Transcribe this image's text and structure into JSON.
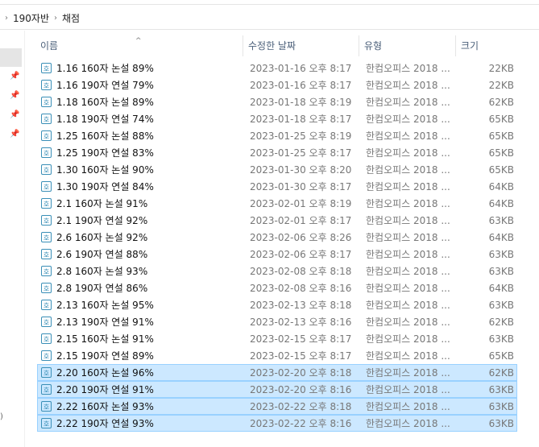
{
  "breadcrumb": [
    "190자반",
    "채점"
  ],
  "columns": {
    "name": "이름",
    "date": "수정한 날짜",
    "type": "유형",
    "size": "크기"
  },
  "colors": {
    "selection_bg": "#cce8ff",
    "selection_border": "#99d1ff",
    "file_icon": "#3a8fb7"
  },
  "icons": {
    "file": "hwp-file-icon",
    "pin": "pin-icon",
    "sort": "sort-ascending-icon"
  },
  "files": [
    {
      "name": "1.16 160자 논설 89%",
      "date": "2023-01-16 오후 8:17",
      "type": "한컴오피스 2018 ...",
      "size": "22KB",
      "selected": false
    },
    {
      "name": "1.16 190자 연설 79%",
      "date": "2023-01-16 오후 8:17",
      "type": "한컴오피스 2018 ...",
      "size": "22KB",
      "selected": false
    },
    {
      "name": "1.18 160자 논설 89%",
      "date": "2023-01-18 오후 8:19",
      "type": "한컴오피스 2018 ...",
      "size": "62KB",
      "selected": false
    },
    {
      "name": "1.18 190자 연설 74%",
      "date": "2023-01-18 오후 8:17",
      "type": "한컴오피스 2018 ...",
      "size": "65KB",
      "selected": false
    },
    {
      "name": "1.25 160자 논설 88%",
      "date": "2023-01-25 오후 8:19",
      "type": "한컴오피스 2018 ...",
      "size": "65KB",
      "selected": false
    },
    {
      "name": "1.25 190자 연설 83%",
      "date": "2023-01-25 오후 8:17",
      "type": "한컴오피스 2018 ...",
      "size": "65KB",
      "selected": false
    },
    {
      "name": "1.30 160자 논설 90%",
      "date": "2023-01-30 오후 8:20",
      "type": "한컴오피스 2018 ...",
      "size": "65KB",
      "selected": false
    },
    {
      "name": "1.30 190자 연설 84%",
      "date": "2023-01-30 오후 8:17",
      "type": "한컴오피스 2018 ...",
      "size": "64KB",
      "selected": false
    },
    {
      "name": "2.1 160자 논설 91%",
      "date": "2023-02-01 오후 8:19",
      "type": "한컴오피스 2018 ...",
      "size": "64KB",
      "selected": false
    },
    {
      "name": "2.1 190자 연설 92%",
      "date": "2023-02-01 오후 8:17",
      "type": "한컴오피스 2018 ...",
      "size": "63KB",
      "selected": false
    },
    {
      "name": "2.6 160자 논설 92%",
      "date": "2023-02-06 오후 8:26",
      "type": "한컴오피스 2018 ...",
      "size": "64KB",
      "selected": false
    },
    {
      "name": "2.6 190자 연설 88%",
      "date": "2023-02-06 오후 8:17",
      "type": "한컴오피스 2018 ...",
      "size": "63KB",
      "selected": false
    },
    {
      "name": "2.8 160자 논설 93%",
      "date": "2023-02-08 오후 8:18",
      "type": "한컴오피스 2018 ...",
      "size": "63KB",
      "selected": false
    },
    {
      "name": "2.8 190자 연설 86%",
      "date": "2023-02-08 오후 8:16",
      "type": "한컴오피스 2018 ...",
      "size": "64KB",
      "selected": false
    },
    {
      "name": "2.13 160자 논설 95%",
      "date": "2023-02-13 오후 8:18",
      "type": "한컴오피스 2018 ...",
      "size": "63KB",
      "selected": false
    },
    {
      "name": "2.13 190자 연설 91%",
      "date": "2023-02-13 오후 8:16",
      "type": "한컴오피스 2018 ...",
      "size": "62KB",
      "selected": false
    },
    {
      "name": "2.15 160자 논설 91%",
      "date": "2023-02-15 오후 8:17",
      "type": "한컴오피스 2018 ...",
      "size": "63KB",
      "selected": false
    },
    {
      "name": "2.15 190자 연설 89%",
      "date": "2023-02-15 오후 8:17",
      "type": "한컴오피스 2018 ...",
      "size": "65KB",
      "selected": false
    },
    {
      "name": "2.20 160자 논설 96%",
      "date": "2023-02-20 오후 8:18",
      "type": "한컴오피스 2018 ...",
      "size": "62KB",
      "selected": true
    },
    {
      "name": "2.20 190자 연설 91%",
      "date": "2023-02-20 오후 8:16",
      "type": "한컴오피스 2018 ...",
      "size": "63KB",
      "selected": true
    },
    {
      "name": "2.22 160자 논설 93%",
      "date": "2023-02-22 오후 8:18",
      "type": "한컴오피스 2018 ...",
      "size": "63KB",
      "selected": true
    },
    {
      "name": "2.22 190자 연설 93%",
      "date": "2023-02-22 오후 8:16",
      "type": "한컴오피스 2018 ...",
      "size": "63KB",
      "selected": true
    }
  ]
}
